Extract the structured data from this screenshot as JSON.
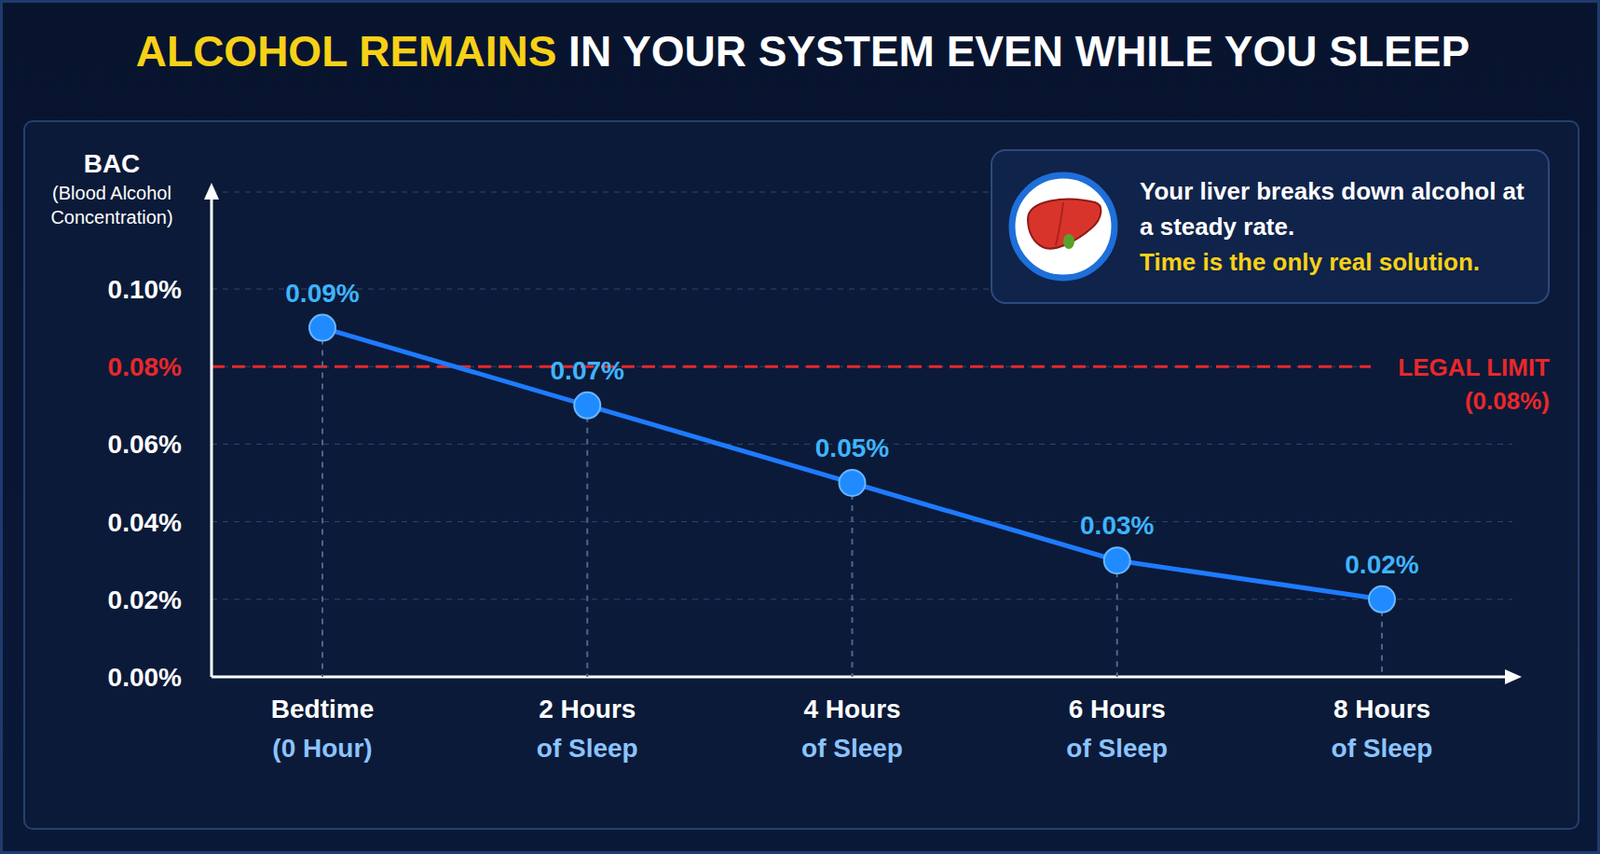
{
  "chart_data": {
    "type": "line",
    "title": "ALCOHOL REMAINS IN YOUR SYSTEM EVEN WHILE YOU SLEEP",
    "ylabel": "BAC\n(Blood Alcohol\nConcentration)",
    "categories": [
      "Bedtime\n(0 Hour)",
      "2 Hours\nof Sleep",
      "4 Hours\nof Sleep",
      "6 Hours\nof Sleep",
      "8 Hours\nof Sleep"
    ],
    "values": [
      0.09,
      0.07,
      0.05,
      0.03,
      0.02
    ],
    "value_labels": [
      "0.09%",
      "0.07%",
      "0.05%",
      "0.03%",
      "0.02%"
    ],
    "data_labels": true,
    "color": "#1e7bff",
    "marker": "circle",
    "line_style": "solid",
    "ylim": [
      0,
      0.125
    ],
    "yticks": [
      {
        "value": 0,
        "label": "0.00%"
      },
      {
        "value": 0.02,
        "label": "0.02%"
      },
      {
        "value": 0.04,
        "label": "0.04%"
      },
      {
        "value": 0.06,
        "label": "0.06%"
      },
      {
        "value": 0.08,
        "label": "0.08%"
      },
      {
        "value": 0.1,
        "label": "0.10%"
      }
    ],
    "grid": true,
    "reference_line": {
      "value": 0.08,
      "label": "LEGAL LIMIT\n(0.08%)",
      "color": "#e8282b",
      "line_style": "dashed"
    },
    "annotation": [
      "Your liver breaks down alcohol at a steady rate.",
      "Time is the only real solution."
    ]
  }
}
